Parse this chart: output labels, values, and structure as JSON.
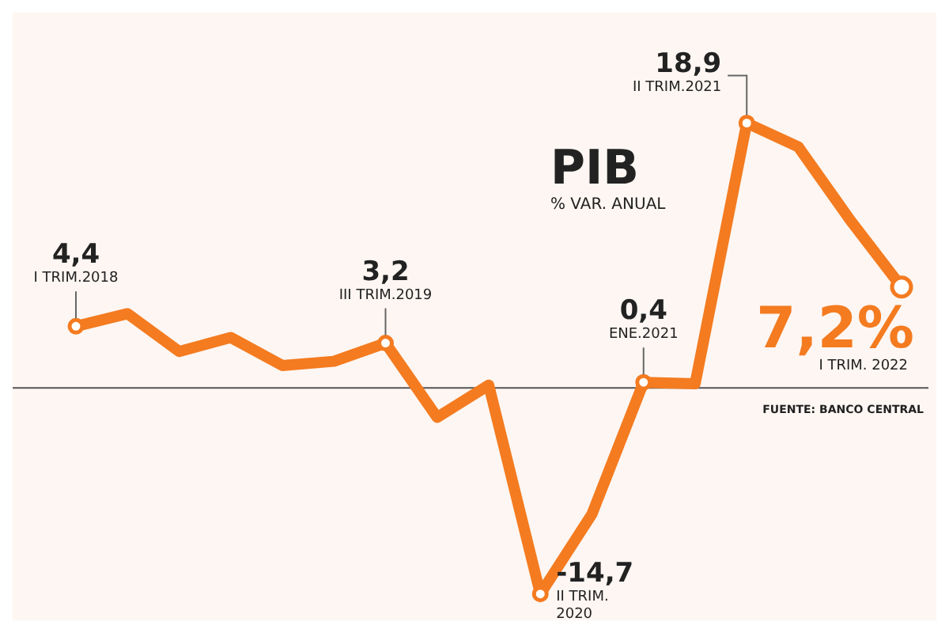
{
  "chart_data": {
    "type": "line",
    "title": "PIB",
    "subtitle": "% VAR. ANUAL",
    "categories": [
      null,
      null,
      null,
      null,
      null,
      null,
      null,
      null,
      null,
      null,
      null,
      null,
      null,
      null,
      null,
      null,
      null
    ],
    "series": [
      {
        "color": "#f47b20",
        "values": [
          4.4,
          5.3,
          2.6,
          3.6,
          1.6,
          1.9,
          3.2,
          -2.1,
          0.2,
          -14.7,
          -9.0,
          0.4,
          0.3,
          18.9,
          17.2,
          12.0,
          7.2
        ],
        "value_labels": [
          "4,4",
          null,
          null,
          null,
          null,
          null,
          "3,2",
          null,
          null,
          "-14,7",
          null,
          "0,4",
          null,
          "18,9",
          null,
          null,
          "7,2%"
        ]
      }
    ],
    "ref_lines": [
      {
        "axis": "y",
        "value": 0,
        "color": "#555555"
      }
    ],
    "annotations": [
      "I TRIM.2018",
      "III TRIM.2019",
      "II TRIM.\n2020",
      "ENE.2021",
      "II TRIM.2021",
      "I TRIM. 2022",
      "FUENTE: BANCO CENTRAL"
    ]
  }
}
